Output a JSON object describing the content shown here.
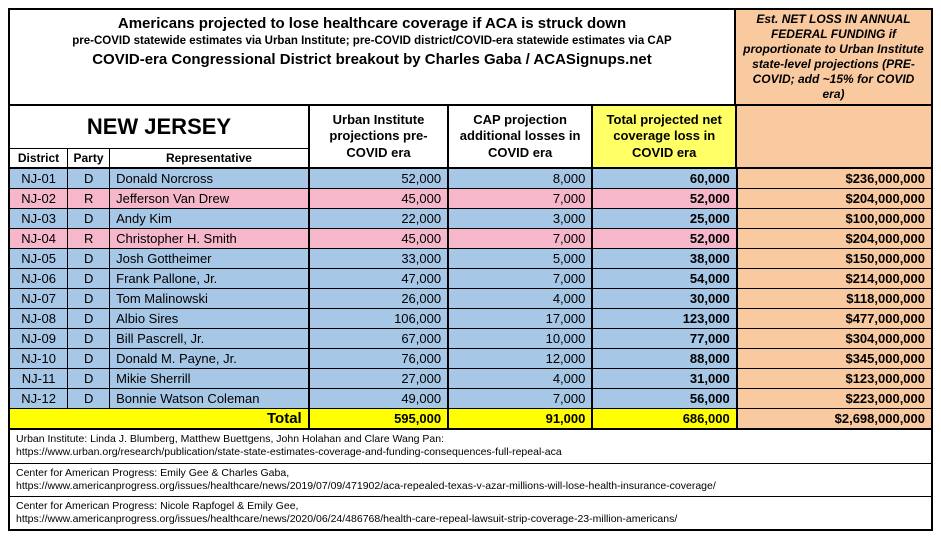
{
  "header": {
    "title1": "Americans projected to lose healthcare coverage if ACA is struck down",
    "title2": "pre-COVID statewide estimates via Urban Institute; pre-COVID district/COVID-era statewide estimates via CAP",
    "title3": "COVID-era Congressional District breakout by Charles Gaba / ACASignups.net",
    "funding_box": "Est. NET LOSS IN ANNUAL FEDERAL FUNDING if proportionate to Urban Institute state-level projections (PRE-COVID; add ~15% for COVID era)"
  },
  "columns": {
    "state": "NEW JERSEY",
    "district": "District",
    "party": "Party",
    "rep": "Representative",
    "urban": "Urban Institute projections pre-COVID era",
    "cap": "CAP projection additional losses in COVID era",
    "total": "Total projected net coverage loss in COVID era"
  },
  "colors": {
    "party_D": "#a7c7e7",
    "party_R": "#f5b7c9",
    "highlight_yellow": "#ffff66",
    "total_yellow": "#ffff00",
    "funding_orange": "#f9c9a0"
  },
  "rows": [
    {
      "district": "NJ-01",
      "party": "D",
      "rep": "Donald Norcross",
      "urban": "52,000",
      "cap": "8,000",
      "total": "60,000",
      "fund": "$236,000,000"
    },
    {
      "district": "NJ-02",
      "party": "R",
      "rep": "Jefferson Van Drew",
      "urban": "45,000",
      "cap": "7,000",
      "total": "52,000",
      "fund": "$204,000,000"
    },
    {
      "district": "NJ-03",
      "party": "D",
      "rep": "Andy Kim",
      "urban": "22,000",
      "cap": "3,000",
      "total": "25,000",
      "fund": "$100,000,000"
    },
    {
      "district": "NJ-04",
      "party": "R",
      "rep": "Christopher H. Smith",
      "urban": "45,000",
      "cap": "7,000",
      "total": "52,000",
      "fund": "$204,000,000"
    },
    {
      "district": "NJ-05",
      "party": "D",
      "rep": "Josh Gottheimer",
      "urban": "33,000",
      "cap": "5,000",
      "total": "38,000",
      "fund": "$150,000,000"
    },
    {
      "district": "NJ-06",
      "party": "D",
      "rep": "Frank Pallone, Jr.",
      "urban": "47,000",
      "cap": "7,000",
      "total": "54,000",
      "fund": "$214,000,000"
    },
    {
      "district": "NJ-07",
      "party": "D",
      "rep": "Tom Malinowski",
      "urban": "26,000",
      "cap": "4,000",
      "total": "30,000",
      "fund": "$118,000,000"
    },
    {
      "district": "NJ-08",
      "party": "D",
      "rep": "Albio Sires",
      "urban": "106,000",
      "cap": "17,000",
      "total": "123,000",
      "fund": "$477,000,000"
    },
    {
      "district": "NJ-09",
      "party": "D",
      "rep": "Bill Pascrell, Jr.",
      "urban": "67,000",
      "cap": "10,000",
      "total": "77,000",
      "fund": "$304,000,000"
    },
    {
      "district": "NJ-10",
      "party": "D",
      "rep": "Donald M. Payne, Jr.",
      "urban": "76,000",
      "cap": "12,000",
      "total": "88,000",
      "fund": "$345,000,000"
    },
    {
      "district": "NJ-11",
      "party": "D",
      "rep": "Mikie Sherrill",
      "urban": "27,000",
      "cap": "4,000",
      "total": "31,000",
      "fund": "$123,000,000"
    },
    {
      "district": "NJ-12",
      "party": "D",
      "rep": "Bonnie Watson Coleman",
      "urban": "49,000",
      "cap": "7,000",
      "total": "56,000",
      "fund": "$223,000,000"
    }
  ],
  "totals": {
    "label": "Total",
    "urban": "595,000",
    "cap": "91,000",
    "total": "686,000",
    "fund": "$2,698,000,000"
  },
  "sources": [
    {
      "prefix": "Urban Institute: Linda J. Blumberg, Matthew Buettgens, John Holahan and Clare Wang Pan:",
      "url": "https://www.urban.org/research/publication/state-state-estimates-coverage-and-funding-consequences-full-repeal-aca"
    },
    {
      "prefix": "Center for American Progress: Emily Gee & Charles Gaba,",
      "url": "https://www.americanprogress.org/issues/healthcare/news/2019/07/09/471902/aca-repealed-texas-v-azar-millions-will-lose-health-insurance-coverage/"
    },
    {
      "prefix": "Center for American Progress: Nicole Rapfogel & Emily Gee,",
      "url": "https://www.americanprogress.org/issues/healthcare/news/2020/06/24/486768/health-care-repeal-lawsuit-strip-coverage-23-million-americans/"
    }
  ]
}
